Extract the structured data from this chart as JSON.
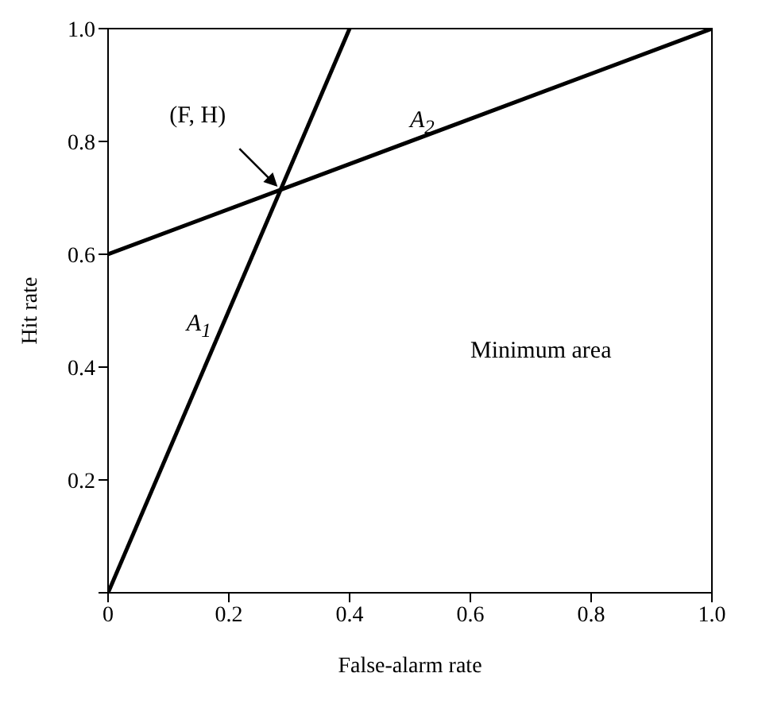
{
  "chart_data": {
    "type": "line",
    "xlabel": "False-alarm rate",
    "ylabel": "Hit rate",
    "xlim": [
      0,
      1
    ],
    "ylim": [
      0,
      1
    ],
    "xticks": [
      0,
      0.2,
      0.4,
      0.6,
      0.8,
      {
        "value": 1,
        "label": "1.0"
      }
    ],
    "yticks": [
      {
        "value": 0,
        "label": null
      },
      0.2,
      0.4,
      0.6,
      0.8,
      {
        "value": 1,
        "label": "1.0"
      }
    ],
    "series": [
      {
        "color": "#000000",
        "x": [
          0,
          0.4
        ],
        "values": [
          0,
          1
        ]
      },
      {
        "color": "#000000",
        "x": [
          0,
          1
        ],
        "values": [
          0.6,
          1
        ]
      }
    ],
    "annotations": [
      {
        "text": "(F, H)",
        "x": 0.286,
        "y": 0.714
      },
      "A$_{1}$",
      "A$_{2}$",
      "Minimum area"
    ],
    "marker": "none",
    "grid": false
  }
}
